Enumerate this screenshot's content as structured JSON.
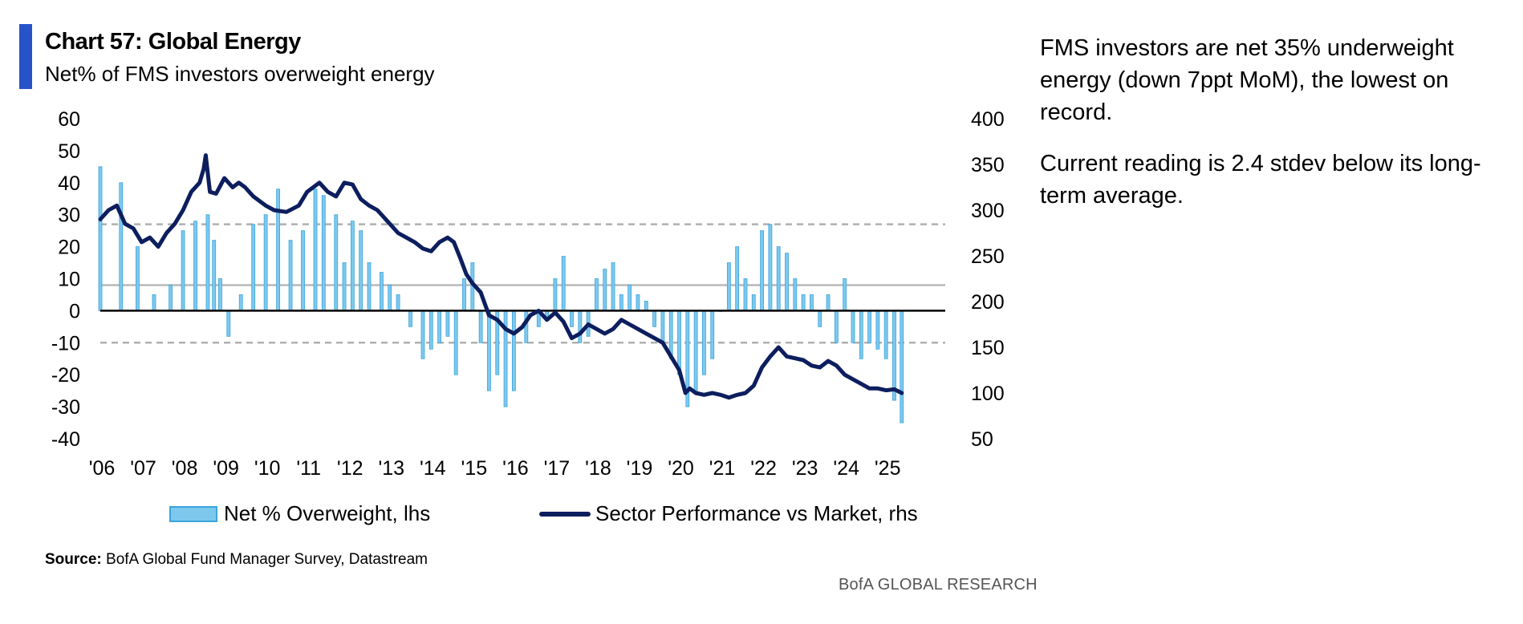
{
  "header": {
    "title": "Chart 57: Global Energy",
    "subtitle": "Net% of FMS investors overweight energy"
  },
  "legend": {
    "bar_label": "Net % Overweight, lhs",
    "line_label": "Sector Performance vs Market, rhs"
  },
  "footer": {
    "source_label": "Source:",
    "source_text": "BofA Global Fund Manager Survey, Datastream",
    "brand": "BofA GLOBAL RESEARCH"
  },
  "commentary": {
    "paragraph_1": "FMS investors are net 35% underweight energy (down 7ppt MoM), the lowest on record.",
    "paragraph_2": "Current reading is 2.4 stdev below its long-term average."
  },
  "colors": {
    "accent": "#2753c9",
    "bar_fill": "#7ec8ee",
    "bar_stroke": "#3aa5dd",
    "line": "#0d1e5e",
    "ref_dashed": "#b0b0b0",
    "ref_solid": "#b8b8b8"
  },
  "chart_data": {
    "type": "bar",
    "x_ticks": [
      "'06",
      "'07",
      "'08",
      "'09",
      "'10",
      "'11",
      "'12",
      "'13",
      "'14",
      "'15",
      "'16",
      "'17",
      "'18",
      "'19",
      "'20",
      "'21",
      "'22",
      "'23",
      "'24",
      "'25"
    ],
    "x_tick_years": [
      2006,
      2007,
      2008,
      2009,
      2010,
      2011,
      2012,
      2013,
      2014,
      2015,
      2016,
      2017,
      2018,
      2019,
      2020,
      2021,
      2022,
      2023,
      2024,
      2025
    ],
    "x_range": [
      2006.0,
      2025.85
    ],
    "y_left": {
      "ticks": [
        "60",
        "50",
        "40",
        "30",
        "20",
        "10",
        "0",
        "-10",
        "-20",
        "-30",
        "-40"
      ],
      "range": [
        -40,
        60
      ]
    },
    "y_right": {
      "ticks": [
        "400",
        "350",
        "300",
        "250",
        "200",
        "150",
        "100",
        "50"
      ],
      "range": [
        50,
        400
      ]
    },
    "reference_lines": [
      {
        "value": 27,
        "style": "dashed"
      },
      {
        "value": 8,
        "style": "solid"
      },
      {
        "value": -10,
        "style": "dashed"
      }
    ],
    "series": [
      {
        "name": "Net % Overweight, lhs",
        "type": "bar",
        "axis": "left",
        "x": [
          2006.0,
          2006.5,
          2006.9,
          2007.3,
          2007.7,
          2008.0,
          2008.3,
          2008.6,
          2008.75,
          2008.9,
          2009.1,
          2009.4,
          2009.7,
          2010.0,
          2010.3,
          2010.6,
          2010.9,
          2011.2,
          2011.4,
          2011.7,
          2011.9,
          2012.1,
          2012.3,
          2012.5,
          2012.8,
          2013.0,
          2013.2,
          2013.5,
          2013.8,
          2014.0,
          2014.2,
          2014.4,
          2014.6,
          2014.8,
          2015.0,
          2015.2,
          2015.4,
          2015.6,
          2015.8,
          2016.0,
          2016.3,
          2016.6,
          2016.8,
          2017.0,
          2017.2,
          2017.4,
          2017.6,
          2017.8,
          2018.0,
          2018.2,
          2018.4,
          2018.6,
          2018.8,
          2019.0,
          2019.2,
          2019.4,
          2019.6,
          2019.8,
          2020.0,
          2020.2,
          2020.4,
          2020.6,
          2020.8,
          2021.0,
          2021.2,
          2021.4,
          2021.6,
          2021.8,
          2022.0,
          2022.2,
          2022.4,
          2022.6,
          2022.8,
          2023.0,
          2023.2,
          2023.4,
          2023.6,
          2023.8,
          2024.0,
          2024.2,
          2024.4,
          2024.6,
          2024.8,
          2025.0,
          2025.2,
          2025.38
        ],
        "values": [
          45,
          40,
          20,
          5,
          8,
          25,
          28,
          30,
          22,
          10,
          -8,
          5,
          27,
          30,
          38,
          22,
          25,
          38,
          36,
          30,
          15,
          28,
          25,
          15,
          12,
          8,
          5,
          -5,
          -15,
          -12,
          -10,
          -8,
          -20,
          10,
          15,
          -10,
          -25,
          -20,
          -30,
          -25,
          -10,
          -5,
          -3,
          10,
          17,
          -5,
          -10,
          -8,
          10,
          13,
          15,
          5,
          8,
          5,
          3,
          -5,
          -10,
          -15,
          -20,
          -30,
          -25,
          -20,
          -15,
          0,
          15,
          20,
          10,
          5,
          25,
          27,
          20,
          18,
          10,
          5,
          5,
          -5,
          5,
          -10,
          10,
          -10,
          -15,
          -10,
          -12,
          -15,
          -28,
          -35
        ]
      },
      {
        "name": "Sector Performance vs Market, rhs",
        "type": "line",
        "axis": "right",
        "x": [
          2006.0,
          2006.2,
          2006.4,
          2006.6,
          2006.8,
          2007.0,
          2007.2,
          2007.4,
          2007.6,
          2007.8,
          2008.0,
          2008.2,
          2008.4,
          2008.5,
          2008.55,
          2008.65,
          2008.8,
          2009.0,
          2009.2,
          2009.35,
          2009.5,
          2009.7,
          2010.0,
          2010.2,
          2010.5,
          2010.8,
          2011.0,
          2011.3,
          2011.5,
          2011.7,
          2011.9,
          2012.1,
          2012.3,
          2012.5,
          2012.7,
          2013.0,
          2013.2,
          2013.4,
          2013.6,
          2013.8,
          2014.0,
          2014.2,
          2014.4,
          2014.55,
          2014.7,
          2014.85,
          2015.0,
          2015.2,
          2015.4,
          2015.6,
          2015.8,
          2016.0,
          2016.2,
          2016.4,
          2016.6,
          2016.8,
          2017.0,
          2017.2,
          2017.4,
          2017.6,
          2017.8,
          2018.0,
          2018.2,
          2018.4,
          2018.6,
          2018.8,
          2019.0,
          2019.2,
          2019.4,
          2019.6,
          2019.8,
          2020.0,
          2020.15,
          2020.25,
          2020.4,
          2020.6,
          2020.8,
          2021.0,
          2021.2,
          2021.4,
          2021.6,
          2021.8,
          2022.0,
          2022.2,
          2022.4,
          2022.6,
          2022.8,
          2023.0,
          2023.2,
          2023.4,
          2023.6,
          2023.8,
          2024.0,
          2024.2,
          2024.4,
          2024.6,
          2024.8,
          2025.0,
          2025.2,
          2025.38
        ],
        "values": [
          290,
          300,
          305,
          285,
          280,
          265,
          270,
          260,
          275,
          285,
          300,
          320,
          330,
          345,
          360,
          320,
          318,
          335,
          325,
          330,
          325,
          315,
          305,
          300,
          298,
          305,
          320,
          330,
          320,
          315,
          330,
          328,
          312,
          305,
          300,
          285,
          275,
          270,
          265,
          258,
          255,
          265,
          270,
          265,
          248,
          230,
          220,
          210,
          185,
          180,
          170,
          165,
          172,
          185,
          190,
          180,
          188,
          178,
          160,
          165,
          175,
          170,
          165,
          170,
          180,
          175,
          170,
          165,
          160,
          155,
          140,
          125,
          100,
          105,
          100,
          98,
          100,
          98,
          95,
          98,
          100,
          108,
          128,
          140,
          150,
          140,
          138,
          136,
          130,
          128,
          135,
          130,
          120,
          115,
          110,
          105,
          105,
          103,
          104,
          100
        ]
      }
    ]
  }
}
